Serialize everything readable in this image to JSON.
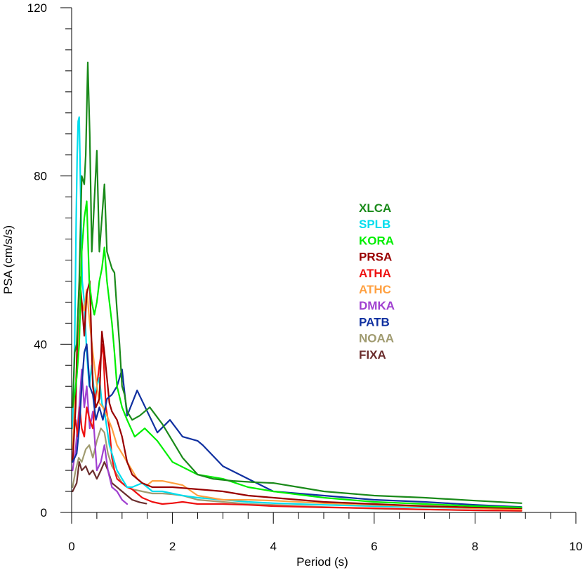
{
  "chart_data": {
    "type": "line",
    "xlabel": "Period (s)",
    "ylabel": "PSA (cm/s/s)",
    "xlim": [
      0,
      10
    ],
    "ylim": [
      0,
      120
    ],
    "x_major_ticks": [
      0,
      2,
      4,
      6,
      8,
      10
    ],
    "x_tick_labels": [
      "0",
      "2",
      "4",
      "6",
      "8",
      "10"
    ],
    "y_major_ticks": [
      0,
      40,
      80,
      120
    ],
    "y_tick_labels": [
      "0",
      "40",
      "80",
      "120"
    ],
    "grid": false,
    "legend_position": "center-right",
    "series": [
      {
        "name": "FIXA",
        "color": "#6B2D2D",
        "x": [
          0.02,
          0.1,
          0.15,
          0.2,
          0.28,
          0.35,
          0.42,
          0.5,
          0.58,
          0.65,
          0.72,
          0.8,
          0.9,
          1.0,
          1.1,
          1.2,
          1.35,
          1.48
        ],
        "y": [
          5,
          7,
          12,
          10,
          11,
          9,
          10,
          8,
          10,
          12,
          10,
          7,
          6,
          5,
          4,
          3,
          2.4,
          2.1
        ]
      },
      {
        "name": "NOAA",
        "color": "#A09B70",
        "x": [
          0.02,
          0.08,
          0.14,
          0.2,
          0.28,
          0.35,
          0.42,
          0.5,
          0.58,
          0.65,
          0.72,
          0.8,
          0.9,
          1.0,
          1.1,
          1.2,
          1.4,
          1.6,
          1.8,
          2.0,
          2.2,
          2.5,
          3.0,
          3.5,
          4.0,
          5.0,
          6.0,
          7.0,
          8.0,
          8.92
        ],
        "y": [
          6,
          10,
          13,
          12,
          15,
          16,
          13,
          17,
          20,
          19,
          14,
          11,
          9,
          7,
          6,
          5.5,
          5,
          4.5,
          4.5,
          4.3,
          4,
          3,
          2.5,
          2,
          1.8,
          1.3,
          0.9,
          0.7,
          0.5,
          0.4
        ]
      },
      {
        "name": "DMKA",
        "color": "#A040D0",
        "x": [
          0.02,
          0.08,
          0.15,
          0.2,
          0.25,
          0.3,
          0.36,
          0.42,
          0.5,
          0.58,
          0.65,
          0.72,
          0.8,
          0.9,
          1.0,
          1.1
        ],
        "y": [
          10,
          15,
          25,
          34,
          25,
          30,
          20,
          24,
          10,
          12,
          16,
          10,
          6,
          5,
          3,
          2
        ]
      },
      {
        "name": "ATHA",
        "color": "#EE1111",
        "x": [
          0.02,
          0.08,
          0.12,
          0.16,
          0.2,
          0.25,
          0.3,
          0.36,
          0.42,
          0.48,
          0.55,
          0.62,
          0.68,
          0.75,
          0.8,
          0.85,
          0.9,
          1.0,
          1.1,
          1.2,
          1.4,
          1.6,
          1.8,
          2.0,
          2.2,
          2.5,
          3.0,
          3.5,
          4.0,
          5.0,
          6.0,
          7.0,
          8.0,
          8.92
        ],
        "y": [
          20,
          22,
          18,
          25,
          20,
          18,
          25,
          22,
          20,
          28,
          35,
          40,
          25,
          20,
          13,
          10,
          8,
          7,
          6,
          5.5,
          3.5,
          2.5,
          2,
          2.2,
          2.5,
          2,
          2,
          1.8,
          1.5,
          1.2,
          1,
          0.7,
          0.5,
          0.4
        ]
      },
      {
        "name": "SPLB",
        "color": "#00DDEE",
        "x": [
          0.02,
          0.06,
          0.09,
          0.11,
          0.13,
          0.15,
          0.18,
          0.21,
          0.25,
          0.3,
          0.35,
          0.4,
          0.45,
          0.5,
          0.55,
          0.6,
          0.65,
          0.7,
          0.75,
          0.8,
          0.9,
          1.0,
          1.1,
          1.2,
          1.4,
          1.6,
          1.8,
          2.0,
          2.2,
          2.5,
          3.0,
          3.5,
          4.0,
          5.0,
          6.0,
          7.0,
          8.0,
          8.92
        ],
        "y": [
          20,
          40,
          70,
          85,
          93,
          94,
          75,
          55,
          50,
          38,
          30,
          35,
          28,
          30,
          32,
          26,
          24,
          20,
          16,
          14,
          10,
          8,
          6,
          6,
          7,
          5,
          5,
          4.5,
          4,
          3.5,
          3,
          2.5,
          2.2,
          1.8,
          1.5,
          1.2,
          1,
          0.8
        ]
      },
      {
        "name": "ATHC",
        "color": "#FFA040",
        "x": [
          0.02,
          0.06,
          0.1,
          0.15,
          0.2,
          0.25,
          0.3,
          0.36,
          0.42,
          0.48,
          0.55,
          0.62,
          0.7,
          0.8,
          0.9,
          1.0,
          1.1,
          1.2,
          1.3,
          1.4,
          1.5,
          1.6,
          1.8,
          2.0,
          2.2,
          2.5,
          3.0,
          3.5,
          4.0,
          5.0,
          6.0,
          7.0,
          8.0,
          8.92
        ],
        "y": [
          15,
          25,
          35,
          45,
          50,
          48,
          53,
          45,
          38,
          32,
          26,
          25,
          23,
          20,
          16,
          14,
          12,
          10,
          8,
          7,
          6.5,
          7.5,
          7.5,
          7,
          6.5,
          4,
          3,
          3,
          2.8,
          2.2,
          1.8,
          1.4,
          1,
          0.7
        ]
      },
      {
        "name": "PRSA",
        "color": "#990000",
        "x": [
          0.02,
          0.08,
          0.12,
          0.16,
          0.2,
          0.25,
          0.3,
          0.36,
          0.42,
          0.48,
          0.55,
          0.6,
          0.65,
          0.7,
          0.75,
          0.8,
          0.85,
          0.9,
          1.0,
          1.1,
          1.2,
          1.4,
          1.6,
          1.8,
          2.0,
          2.5,
          3.0,
          3.5,
          4.0,
          4.5,
          5.0,
          6.0,
          7.0,
          8.0,
          8.92
        ],
        "y": [
          12,
          25,
          45,
          56,
          50,
          42,
          52,
          55,
          30,
          25,
          27,
          43,
          38,
          32,
          26,
          24,
          23,
          22,
          18,
          12,
          9,
          7,
          6,
          6,
          6,
          5.5,
          5,
          4,
          3.5,
          3,
          2.5,
          2,
          1.5,
          1.2,
          1
        ]
      },
      {
        "name": "PATB",
        "color": "#1030A0",
        "x": [
          0.02,
          0.1,
          0.15,
          0.2,
          0.25,
          0.3,
          0.36,
          0.42,
          0.48,
          0.55,
          0.62,
          0.7,
          0.8,
          0.9,
          1.0,
          1.1,
          1.3,
          1.5,
          1.7,
          1.95,
          2.2,
          2.5,
          2.6,
          3.0,
          3.5,
          4.0,
          4.5,
          5.0,
          6.0,
          7.0,
          8.0,
          8.92
        ],
        "y": [
          12,
          14,
          20,
          30,
          38,
          40,
          30,
          28,
          22,
          25,
          22,
          27,
          28,
          30,
          34,
          23,
          29,
          24,
          19,
          22,
          18,
          17,
          16,
          11,
          8,
          5,
          4.5,
          4,
          3,
          2.5,
          1.8,
          1.3
        ]
      },
      {
        "name": "KORA",
        "color": "#00EE00",
        "x": [
          0.02,
          0.06,
          0.1,
          0.15,
          0.2,
          0.25,
          0.3,
          0.35,
          0.4,
          0.45,
          0.5,
          0.55,
          0.6,
          0.65,
          0.7,
          0.75,
          0.8,
          0.85,
          0.9,
          1.0,
          1.1,
          1.25,
          1.45,
          1.7,
          2.0,
          2.5,
          3.0,
          3.5,
          4.0,
          5.0,
          6.0,
          7.0,
          8.0,
          8.92
        ],
        "y": [
          25,
          28,
          32,
          40,
          62,
          70,
          74,
          55,
          50,
          47,
          50,
          55,
          58,
          63,
          55,
          50,
          45,
          38,
          30,
          25,
          22,
          18,
          20,
          17,
          12,
          9,
          8,
          6,
          5,
          3.5,
          2.5,
          2,
          1.5,
          1.2
        ]
      },
      {
        "name": "XLCA",
        "color": "#1A8A1A",
        "x": [
          0.02,
          0.06,
          0.1,
          0.15,
          0.2,
          0.25,
          0.28,
          0.32,
          0.36,
          0.4,
          0.45,
          0.5,
          0.55,
          0.6,
          0.65,
          0.7,
          0.75,
          0.8,
          0.85,
          0.9,
          0.95,
          1.0,
          1.05,
          1.1,
          1.2,
          1.35,
          1.55,
          1.8,
          2.0,
          2.2,
          2.5,
          2.8,
          3.2,
          3.6,
          4.0,
          4.5,
          5.0,
          6.0,
          7.0,
          8.0,
          8.92
        ],
        "y": [
          25,
          38,
          40,
          55,
          80,
          78,
          85,
          107,
          90,
          62,
          74,
          86,
          62,
          70,
          78,
          62,
          60,
          58,
          57,
          48,
          40,
          30,
          28,
          24,
          22,
          23,
          25,
          21,
          17,
          13,
          9,
          8,
          7.5,
          7.2,
          7,
          6,
          5,
          4,
          3.5,
          2.8,
          2.2
        ]
      }
    ],
    "legend": [
      {
        "name": "XLCA",
        "color": "#1A8A1A"
      },
      {
        "name": "SPLB",
        "color": "#00DDEE"
      },
      {
        "name": "KORA",
        "color": "#00EE00"
      },
      {
        "name": "PRSA",
        "color": "#990000"
      },
      {
        "name": "ATHA",
        "color": "#EE1111"
      },
      {
        "name": "ATHC",
        "color": "#FFA040"
      },
      {
        "name": "DMKA",
        "color": "#A040D0"
      },
      {
        "name": "PATB",
        "color": "#1030A0"
      },
      {
        "name": "NOAA",
        "color": "#A09B70"
      },
      {
        "name": "FIXA",
        "color": "#6B2D2D"
      }
    ]
  }
}
